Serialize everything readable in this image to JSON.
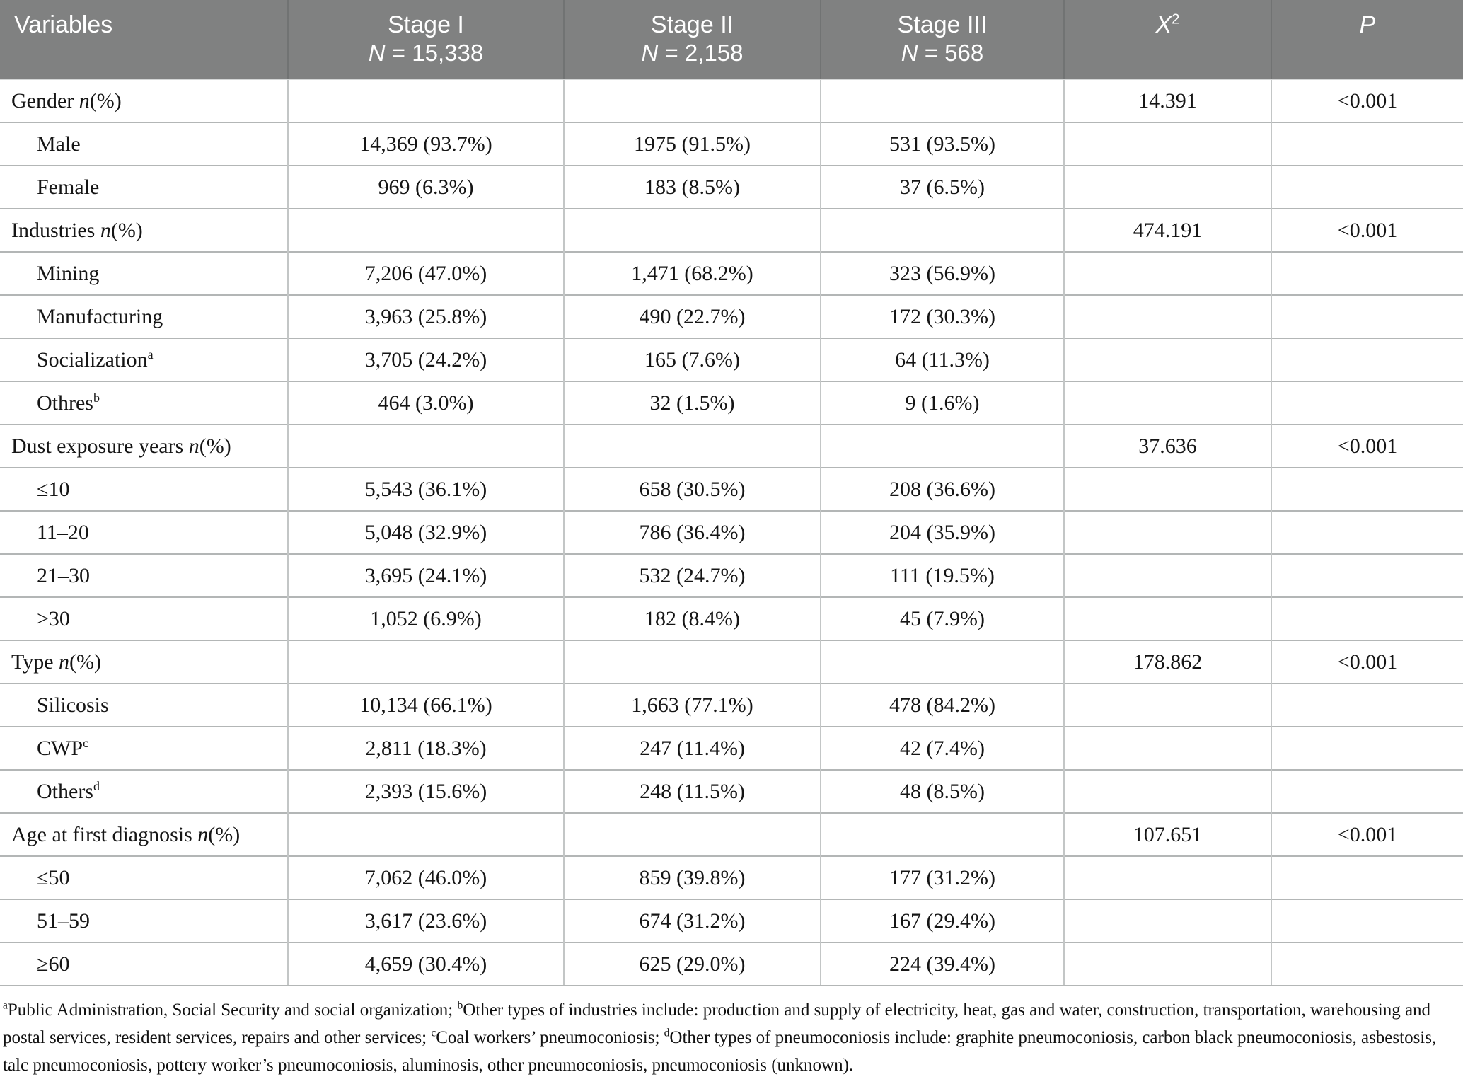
{
  "table": {
    "headers": {
      "variables": "Variables",
      "stage1": {
        "line1": "Stage I",
        "n": "N",
        "rest": " = 15,338"
      },
      "stage2": {
        "line1": "Stage II",
        "n": "N",
        "rest": " = 2,158"
      },
      "stage3": {
        "line1": "Stage III",
        "n": "N",
        "rest": " = 568"
      },
      "chi": {
        "base": "X",
        "sup": "2"
      },
      "p": "P"
    },
    "rows": [
      {
        "pre": "Gender ",
        "it": "n",
        "post": "(%)",
        "sup": "",
        "indent": false,
        "s1": "",
        "s2": "",
        "s3": "",
        "chi": "14.391",
        "p": "<0.001"
      },
      {
        "pre": "Male",
        "it": "",
        "post": "",
        "sup": "",
        "indent": true,
        "s1": "14,369 (93.7%)",
        "s2": "1975 (91.5%)",
        "s3": "531 (93.5%)",
        "chi": "",
        "p": ""
      },
      {
        "pre": "Female",
        "it": "",
        "post": "",
        "sup": "",
        "indent": true,
        "s1": "969 (6.3%)",
        "s2": "183 (8.5%)",
        "s3": "37 (6.5%)",
        "chi": "",
        "p": ""
      },
      {
        "pre": "Industries ",
        "it": "n",
        "post": "(%)",
        "sup": "",
        "indent": false,
        "s1": "",
        "s2": "",
        "s3": "",
        "chi": "474.191",
        "p": "<0.001"
      },
      {
        "pre": "Mining",
        "it": "",
        "post": "",
        "sup": "",
        "indent": true,
        "s1": "7,206 (47.0%)",
        "s2": "1,471 (68.2%)",
        "s3": "323 (56.9%)",
        "chi": "",
        "p": ""
      },
      {
        "pre": "Manufacturing",
        "it": "",
        "post": "",
        "sup": "",
        "indent": true,
        "s1": "3,963 (25.8%)",
        "s2": "490 (22.7%)",
        "s3": "172 (30.3%)",
        "chi": "",
        "p": ""
      },
      {
        "pre": "Socialization",
        "it": "",
        "post": "",
        "sup": "a",
        "indent": true,
        "s1": "3,705 (24.2%)",
        "s2": "165 (7.6%)",
        "s3": "64 (11.3%)",
        "chi": "",
        "p": ""
      },
      {
        "pre": "Othres",
        "it": "",
        "post": "",
        "sup": "b",
        "indent": true,
        "s1": "464 (3.0%)",
        "s2": "32 (1.5%)",
        "s3": "9 (1.6%)",
        "chi": "",
        "p": ""
      },
      {
        "pre": "Dust exposure years ",
        "it": "n",
        "post": "(%)",
        "sup": "",
        "indent": false,
        "s1": "",
        "s2": "",
        "s3": "",
        "chi": "37.636",
        "p": "<0.001"
      },
      {
        "pre": "≤10",
        "it": "",
        "post": "",
        "sup": "",
        "indent": true,
        "s1": "5,543 (36.1%)",
        "s2": "658 (30.5%)",
        "s3": "208 (36.6%)",
        "chi": "",
        "p": ""
      },
      {
        "pre": "11–20",
        "it": "",
        "post": "",
        "sup": "",
        "indent": true,
        "s1": "5,048 (32.9%)",
        "s2": "786 (36.4%)",
        "s3": "204 (35.9%)",
        "chi": "",
        "p": ""
      },
      {
        "pre": "21–30",
        "it": "",
        "post": "",
        "sup": "",
        "indent": true,
        "s1": "3,695 (24.1%)",
        "s2": "532 (24.7%)",
        "s3": "111 (19.5%)",
        "chi": "",
        "p": ""
      },
      {
        "pre": ">30",
        "it": "",
        "post": "",
        "sup": "",
        "indent": true,
        "s1": "1,052 (6.9%)",
        "s2": "182 (8.4%)",
        "s3": "45 (7.9%)",
        "chi": "",
        "p": ""
      },
      {
        "pre": "Type ",
        "it": "n",
        "post": "(%)",
        "sup": "",
        "indent": false,
        "s1": "",
        "s2": "",
        "s3": "",
        "chi": "178.862",
        "p": "<0.001"
      },
      {
        "pre": "Silicosis",
        "it": "",
        "post": "",
        "sup": "",
        "indent": true,
        "s1": "10,134 (66.1%)",
        "s2": "1,663 (77.1%)",
        "s3": "478 (84.2%)",
        "chi": "",
        "p": ""
      },
      {
        "pre": "CWP",
        "it": "",
        "post": "",
        "sup": "c",
        "indent": true,
        "s1": "2,811 (18.3%)",
        "s2": "247 (11.4%)",
        "s3": "42 (7.4%)",
        "chi": "",
        "p": ""
      },
      {
        "pre": "Others",
        "it": "",
        "post": "",
        "sup": "d",
        "indent": true,
        "s1": "2,393 (15.6%)",
        "s2": "248 (11.5%)",
        "s3": "48 (8.5%)",
        "chi": "",
        "p": ""
      },
      {
        "pre": "Age at first diagnosis ",
        "it": "n",
        "post": "(%)",
        "sup": "",
        "indent": false,
        "s1": "",
        "s2": "",
        "s3": "",
        "chi": "107.651",
        "p": "<0.001"
      },
      {
        "pre": "≤50",
        "it": "",
        "post": "",
        "sup": "",
        "indent": true,
        "s1": "7,062 (46.0%)",
        "s2": "859 (39.8%)",
        "s3": "177 (31.2%)",
        "chi": "",
        "p": ""
      },
      {
        "pre": "51–59",
        "it": "",
        "post": "",
        "sup": "",
        "indent": true,
        "s1": "3,617 (23.6%)",
        "s2": "674 (31.2%)",
        "s3": "167 (29.4%)",
        "chi": "",
        "p": ""
      },
      {
        "pre": "≥60",
        "it": "",
        "post": "",
        "sup": "",
        "indent": true,
        "s1": "4,659 (30.4%)",
        "s2": "625 (29.0%)",
        "s3": "224 (39.4%)",
        "chi": "",
        "p": ""
      }
    ],
    "footnote_segments": [
      {
        "sup": "a",
        "text": "Public Administration, Social Security and social organization; "
      },
      {
        "sup": "b",
        "text": "Other types of industries include: production and supply of electricity, heat, gas and water, construction, transportation, warehousing and postal services, resident services, repairs and other services; "
      },
      {
        "sup": "c",
        "text": "Coal workers’ pneumoconiosis; "
      },
      {
        "sup": "d",
        "text": "Other types of pneumoconiosis include: graphite pneumoconiosis, carbon black pneumoconiosis, asbestosis, talc pneumoconiosis, pottery worker’s pneumoconiosis, aluminosis, other pneumoconiosis, pneumoconiosis (unknown)."
      }
    ]
  },
  "colors": {
    "header_bg": "#808181",
    "header_divider": "#717373",
    "grid_horizontal": "#b3b6b6",
    "grid_vertical": "#c3c6c6",
    "text": "#151515"
  }
}
